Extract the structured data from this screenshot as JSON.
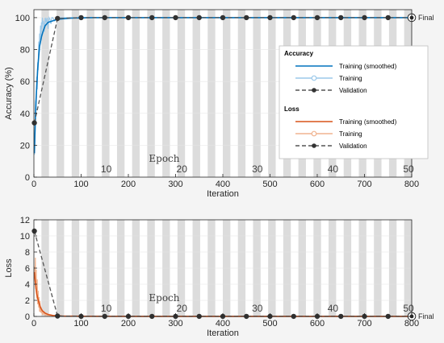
{
  "figure": {
    "final_label": "Final",
    "epoch_axis_title": "Epoch"
  },
  "colors": {
    "plot_bg": "#ffffff",
    "epoch_band": "#dcdcdc",
    "accuracy_line": "#0072bd",
    "accuracy_raw": "#9cc9ea",
    "loss_line": "#d95319",
    "loss_raw": "#f0b38f",
    "validation_line": "#555555",
    "validation_marker": "#333333"
  },
  "chart_data": [
    {
      "id": "accuracy-plot",
      "type": "line",
      "xlabel": "Iteration",
      "ylabel": "Accuracy (%)",
      "xlim": [
        0,
        800
      ],
      "ylim": [
        0,
        105
      ],
      "xticks": [
        0,
        100,
        200,
        300,
        400,
        500,
        600,
        700,
        800
      ],
      "yticks": [
        0,
        20,
        40,
        60,
        80,
        100
      ],
      "epochs": {
        "count": 50,
        "iterations_per_epoch": 16,
        "labels": [
          "10",
          "20",
          "30",
          "40",
          "50"
        ]
      },
      "legend": {
        "placement": "right",
        "groups": [
          {
            "title": "Accuracy",
            "entries": [
              "Training (smoothed)",
              "Training",
              "Validation"
            ]
          },
          {
            "title": "Loss",
            "entries": [
              "Training (smoothed)",
              "Training",
              "Validation"
            ]
          }
        ]
      },
      "series": [
        {
          "name": "Training (smoothed)",
          "x": [
            1,
            4,
            8,
            12,
            16,
            20,
            24,
            30,
            40,
            50,
            80,
            120,
            200,
            400,
            800
          ],
          "y": [
            15,
            45,
            68,
            82,
            88,
            92,
            95,
            97,
            98,
            99,
            99.7,
            100,
            100,
            100,
            100
          ]
        },
        {
          "name": "Training",
          "x": [
            1,
            2,
            3,
            4,
            5,
            6,
            7,
            8,
            9,
            10,
            11,
            12,
            13,
            14,
            15,
            16,
            17,
            18,
            19,
            20,
            22,
            24,
            26,
            28,
            30,
            32,
            34,
            36,
            38,
            40,
            44,
            48,
            52,
            60,
            80,
            100,
            200,
            400,
            800
          ],
          "y": [
            14,
            22,
            35,
            48,
            42,
            63,
            55,
            72,
            67,
            85,
            78,
            90,
            86,
            95,
            88,
            97,
            93,
            100,
            96,
            98,
            91,
            100,
            97,
            100,
            93,
            100,
            99,
            96,
            100,
            100,
            98,
            100,
            100,
            100,
            100,
            100,
            100,
            100,
            100
          ]
        },
        {
          "name": "Validation",
          "x": [
            1,
            50,
            100,
            150,
            200,
            250,
            300,
            350,
            400,
            450,
            500,
            550,
            600,
            650,
            700,
            750,
            800
          ],
          "y": [
            34,
            99.5,
            100,
            100,
            100,
            100,
            100,
            100,
            100,
            100,
            100,
            100,
            100,
            100,
            100,
            100,
            100
          ]
        }
      ],
      "final_value": 100
    },
    {
      "id": "loss-plot",
      "type": "line",
      "xlabel": "Iteration",
      "ylabel": "Loss",
      "xlim": [
        0,
        800
      ],
      "ylim": [
        0,
        12
      ],
      "xticks": [
        0,
        100,
        200,
        300,
        400,
        500,
        600,
        700,
        800
      ],
      "yticks": [
        0,
        2,
        4,
        6,
        8,
        10,
        12
      ],
      "epochs": {
        "count": 50,
        "iterations_per_epoch": 16,
        "labels": [
          "10",
          "20",
          "30",
          "40",
          "50"
        ]
      },
      "series": [
        {
          "name": "Training (smoothed)",
          "x": [
            1,
            3,
            6,
            10,
            14,
            18,
            24,
            30,
            40,
            60,
            100,
            200,
            400,
            800
          ],
          "y": [
            5.5,
            4.2,
            2.8,
            1.8,
            1.1,
            0.7,
            0.4,
            0.25,
            0.12,
            0.05,
            0.02,
            0.01,
            0.01,
            0.01
          ]
        },
        {
          "name": "Training",
          "x": [
            1,
            2,
            3,
            4,
            5,
            6,
            7,
            8,
            9,
            10,
            11,
            12,
            13,
            14,
            15,
            16,
            17,
            18,
            19,
            20,
            22,
            24,
            26,
            28,
            30,
            32,
            36,
            40,
            50,
            60,
            100,
            200,
            400,
            800
          ],
          "y": [
            6.2,
            5.1,
            7.3,
            3.4,
            5.8,
            2.2,
            4.6,
            1.5,
            3.2,
            1.1,
            2.4,
            0.6,
            1.9,
            0.5,
            1.2,
            0.4,
            0.9,
            0.2,
            0.6,
            0.3,
            0.4,
            0.1,
            0.3,
            0.05,
            0.2,
            0.05,
            0.1,
            0.02,
            0.02,
            0.01,
            0.01,
            0.01,
            0.01,
            0.01
          ]
        },
        {
          "name": "Validation",
          "x": [
            1,
            50,
            100,
            150,
            200,
            250,
            300,
            350,
            400,
            450,
            500,
            550,
            600,
            650,
            700,
            750,
            800
          ],
          "y": [
            10.6,
            0.05,
            0.01,
            0.01,
            0.01,
            0.01,
            0.01,
            0.01,
            0.01,
            0.01,
            0.01,
            0.01,
            0.01,
            0.01,
            0.01,
            0.01,
            0.01
          ]
        }
      ],
      "final_value": 0.01
    }
  ]
}
